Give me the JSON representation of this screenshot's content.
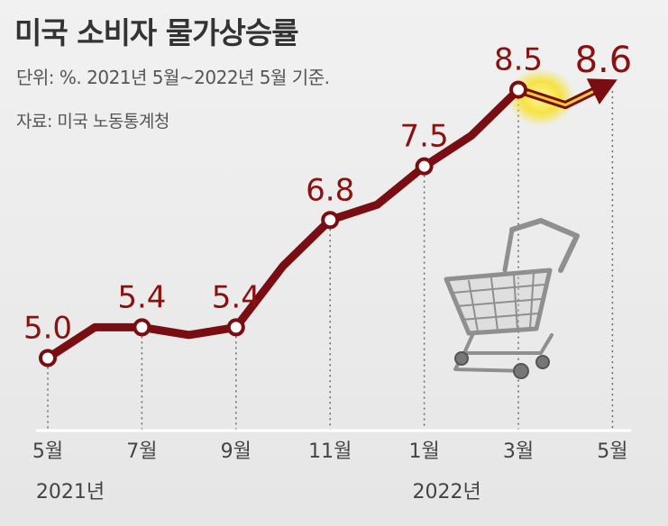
{
  "header": {
    "title": "미국 소비자 물가상승률",
    "subtitle": "단위: %. 2021년 5월~2022년 5월 기준.",
    "source": "자료: 미국 노동통계청"
  },
  "colors": {
    "line": "#7a0d12",
    "label": "#8b1010",
    "highlight": "#f5e23a"
  },
  "chart_data": {
    "type": "line",
    "title": "미국 소비자 물가상승률",
    "subtitle": "단위: %. 2021년 5월~2022년 5월 기준.",
    "x": [
      "2021-05",
      "2021-06",
      "2021-07",
      "2021-08",
      "2021-09",
      "2021-10",
      "2021-11",
      "2021-12",
      "2022-01",
      "2022-02",
      "2022-03",
      "2022-04",
      "2022-05"
    ],
    "series": [
      {
        "values": [
          5.0,
          5.4,
          5.4,
          5.3,
          5.4,
          6.2,
          6.8,
          7.0,
          7.5,
          7.9,
          8.5,
          8.3,
          8.6
        ]
      }
    ],
    "labels": [
      {
        "index": 0,
        "text": "5.0"
      },
      {
        "index": 2,
        "text": "5.4"
      },
      {
        "index": 4,
        "text": "5.4"
      },
      {
        "index": 6,
        "text": "6.8"
      },
      {
        "index": 8,
        "text": "7.5"
      },
      {
        "index": 10,
        "text": "8.5"
      },
      {
        "index": 12,
        "text": "8.6"
      }
    ],
    "ticks": [
      {
        "index": 0,
        "label": "5월"
      },
      {
        "index": 2,
        "label": "7월"
      },
      {
        "index": 4,
        "label": "9월"
      },
      {
        "index": 6,
        "label": "11월"
      },
      {
        "index": 8,
        "label": "1월"
      },
      {
        "index": 10,
        "label": "3월"
      },
      {
        "index": 12,
        "label": "5월"
      }
    ],
    "years": [
      {
        "index": 0,
        "label": "2021년"
      },
      {
        "index": 8,
        "label": "2022년"
      }
    ],
    "highlight_segment": [
      10,
      12
    ],
    "ylim": [
      4.5,
      9.2
    ],
    "grid": "dotted vertical at labeled months"
  }
}
